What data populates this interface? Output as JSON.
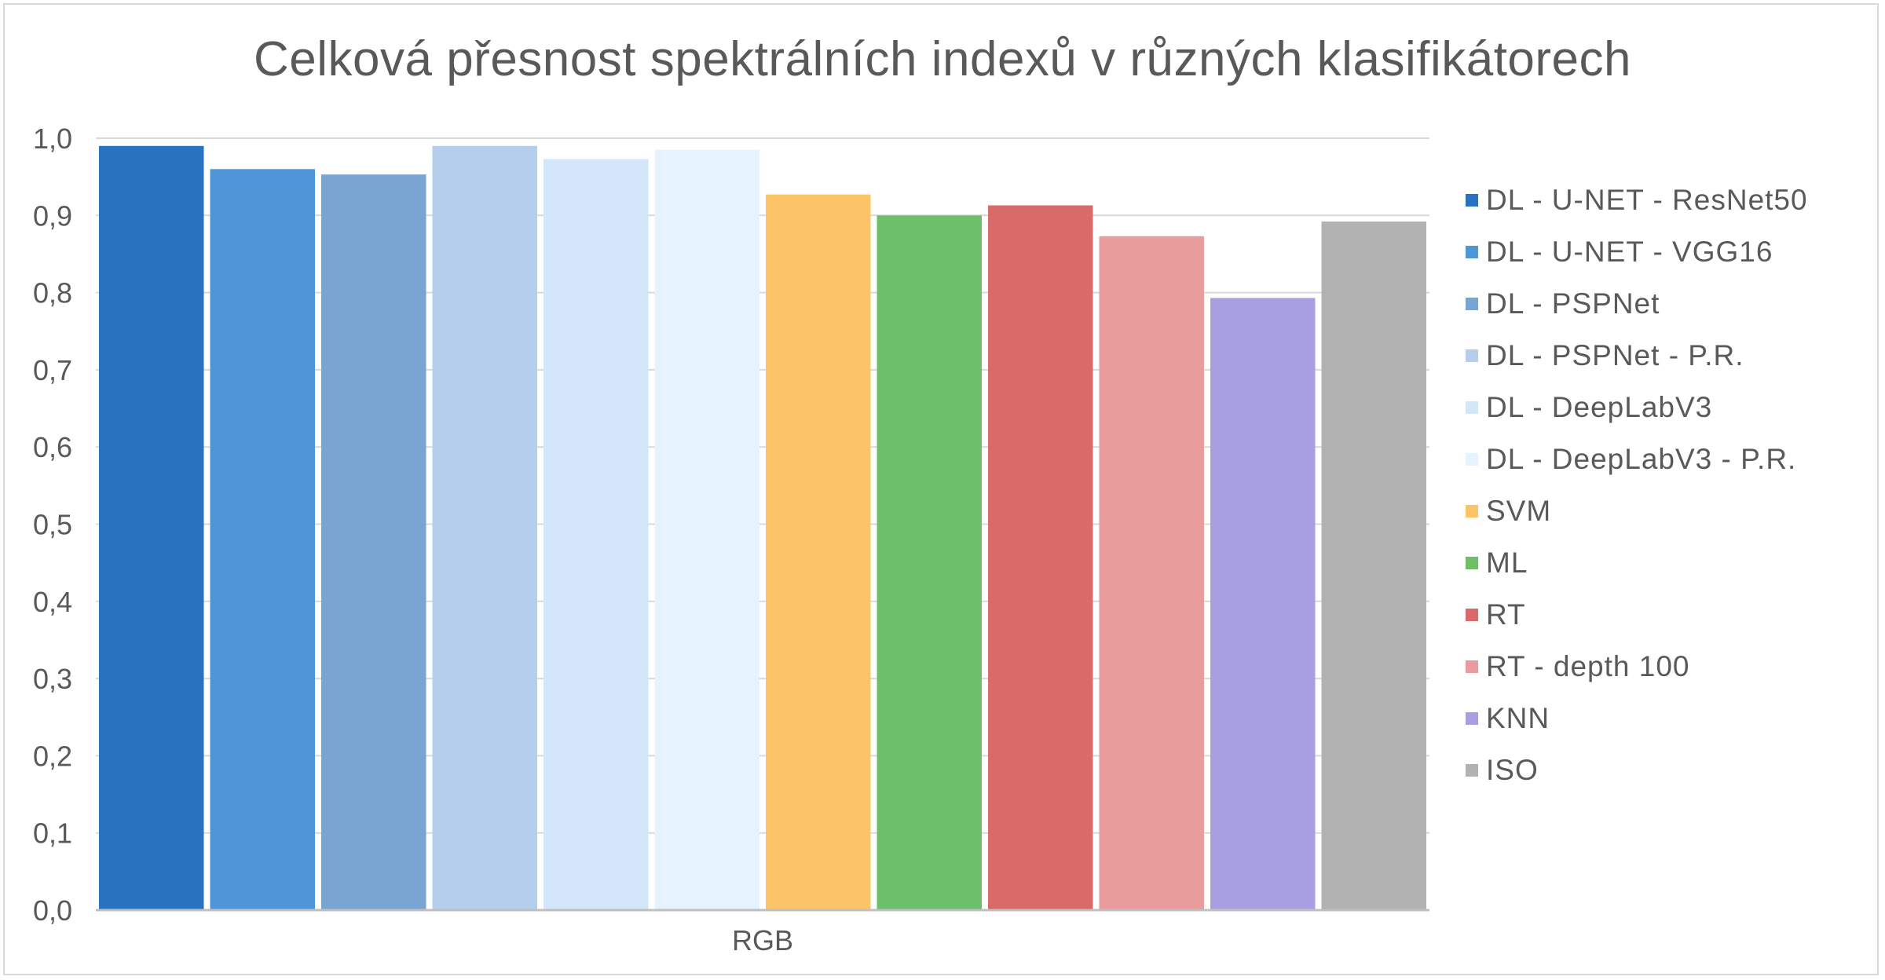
{
  "chart_data": {
    "type": "bar",
    "title": "Celková přesnost spektrálních indexů v různých klasifikátorech",
    "categories": [
      "RGB"
    ],
    "ylim": [
      0,
      1.0
    ],
    "yticks": [
      "0,0",
      "0,1",
      "0,2",
      "0,3",
      "0,4",
      "0,5",
      "0,6",
      "0,7",
      "0,8",
      "0,9",
      "1,0"
    ],
    "grid": true,
    "legend_position": "right",
    "series": [
      {
        "name": "DL - U-NET - ResNet50",
        "values": [
          0.99
        ],
        "color": "#2872bf"
      },
      {
        "name": "DL - U-NET - VGG16",
        "values": [
          0.96
        ],
        "color": "#4f96d8"
      },
      {
        "name": "DL - PSPNet",
        "values": [
          0.953
        ],
        "color": "#78a5d1"
      },
      {
        "name": "DL - PSPNet - P.R.",
        "values": [
          0.99
        ],
        "color": "#b4ceeb"
      },
      {
        "name": "DL - DeepLabV3",
        "values": [
          0.973
        ],
        "color": "#d4e6fa"
      },
      {
        "name": "DL - DeepLabV3 - P.R.",
        "values": [
          0.985
        ],
        "color": "#e6f2fd"
      },
      {
        "name": "SVM",
        "values": [
          0.927
        ],
        "color": "#fdc367"
      },
      {
        "name": "ML",
        "values": [
          0.9
        ],
        "color": "#6dbf6a"
      },
      {
        "name": "RT",
        "values": [
          0.913
        ],
        "color": "#d86a69"
      },
      {
        "name": "RT - depth 100",
        "values": [
          0.873
        ],
        "color": "#e99c9c"
      },
      {
        "name": "KNN",
        "values": [
          0.793
        ],
        "color": "#a89fe2"
      },
      {
        "name": "ISO",
        "values": [
          0.892
        ],
        "color": "#b2b2b2"
      }
    ]
  }
}
